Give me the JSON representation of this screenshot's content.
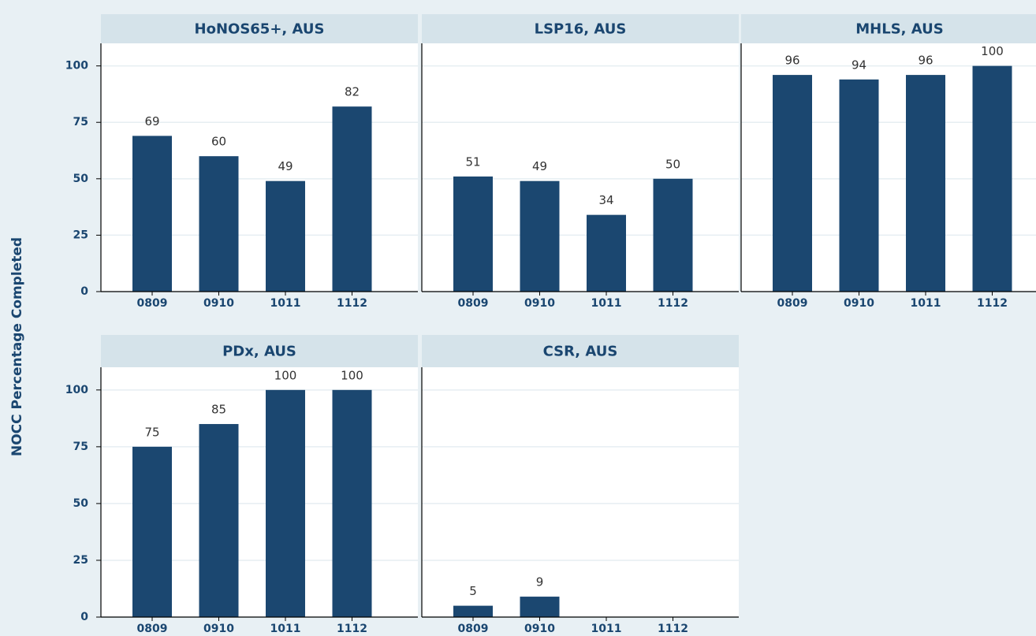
{
  "ylabel": "NOCC Percentage Completed",
  "chart_data": [
    {
      "type": "bar",
      "title": "HoNOS65+, AUS",
      "categories": [
        "0809",
        "0910",
        "1011",
        "1112"
      ],
      "values": [
        69,
        60,
        49,
        82
      ],
      "color": "#1b4770",
      "ylim": [
        0,
        110
      ],
      "yticks": [
        0,
        25,
        50,
        75,
        100
      ],
      "grid": true
    },
    {
      "type": "bar",
      "title": "LSP16, AUS",
      "categories": [
        "0809",
        "0910",
        "1011",
        "1112"
      ],
      "values": [
        51,
        49,
        34,
        50
      ],
      "color": "#1b4770",
      "ylim": [
        0,
        110
      ],
      "yticks": [
        0,
        25,
        50,
        75,
        100
      ],
      "grid": true
    },
    {
      "type": "bar",
      "title": "MHLS, AUS",
      "categories": [
        "0809",
        "0910",
        "1011",
        "1112"
      ],
      "values": [
        96,
        94,
        96,
        100
      ],
      "color": "#1b4770",
      "ylim": [
        0,
        110
      ],
      "yticks": [
        0,
        25,
        50,
        75,
        100
      ],
      "grid": true
    },
    {
      "type": "bar",
      "title": "PDx, AUS",
      "categories": [
        "0809",
        "0910",
        "1011",
        "1112"
      ],
      "values": [
        75,
        85,
        100,
        100
      ],
      "color": "#1b4770",
      "ylim": [
        0,
        110
      ],
      "yticks": [
        0,
        25,
        50,
        75,
        100
      ],
      "grid": true
    },
    {
      "type": "bar",
      "title": "CSR, AUS",
      "categories": [
        "0809",
        "0910",
        "1011",
        "1112"
      ],
      "values": [
        5,
        9,
        null,
        null
      ],
      "color": "#1b4770",
      "ylim": [
        0,
        110
      ],
      "yticks": [
        0,
        25,
        50,
        75,
        100
      ],
      "grid": true
    }
  ]
}
